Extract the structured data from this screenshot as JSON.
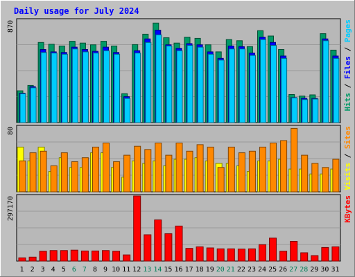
{
  "chart_data": {
    "type": "bar",
    "title": "Daily usage for July 2024",
    "categories": [
      "1",
      "2",
      "3",
      "4",
      "5",
      "6",
      "7",
      "8",
      "9",
      "10",
      "11",
      "12",
      "13",
      "14",
      "15",
      "16",
      "17",
      "18",
      "19",
      "20",
      "21",
      "22",
      "23",
      "24",
      "25",
      "26",
      "27",
      "28",
      "29",
      "30",
      "31"
    ],
    "weekend_days": [
      "6",
      "7",
      "13",
      "14",
      "20",
      "21",
      "27",
      "28"
    ],
    "panels": [
      {
        "id": "hits-panel",
        "scale_label": "870",
        "ylim": [
          0,
          870
        ],
        "legend": [
          "Hits",
          "Files",
          "Pages"
        ],
        "legend_colors": [
          "#009966",
          "#0000ff",
          "#00ccff"
        ],
        "series": [
          {
            "name": "Hits",
            "color": "#009966",
            "values": [
              270,
              315,
              680,
              665,
              650,
              690,
              675,
              660,
              690,
              650,
              245,
              662,
              750,
              845,
              720,
              675,
              725,
              715,
              660,
              600,
              705,
              695,
              645,
              780,
              735,
              620,
              238,
              225,
              235,
              755,
              615
            ]
          },
          {
            "name": "Files",
            "color": "#0000ff",
            "values": [
              250,
              305,
              620,
              600,
              595,
              640,
              620,
              605,
              640,
              595,
              220,
              610,
              710,
              785,
              660,
              630,
              670,
              660,
              600,
              545,
              650,
              645,
              590,
              725,
              680,
              565,
              212,
              206,
              205,
              710,
              565
            ]
          },
          {
            "name": "Pages",
            "color": "#00ccff",
            "values": [
              245,
              295,
              595,
              590,
              580,
              625,
              600,
              590,
              610,
              580,
              205,
              590,
              680,
              745,
              650,
              610,
              655,
              640,
              580,
              530,
              625,
              625,
              570,
              705,
              655,
              545,
              210,
              195,
              200,
              695,
              545
            ]
          }
        ]
      },
      {
        "id": "visits-panel",
        "scale_label": "80",
        "ylim": [
          0,
          80
        ],
        "legend": [
          "Visits",
          "Sites"
        ],
        "legend_colors": [
          "#ffff00",
          "#ff8800"
        ],
        "series": [
          {
            "name": "Visits",
            "color": "#ffff00",
            "values": [
              55,
              38,
              55,
              25,
              42,
              30,
              30,
              48,
              48,
              30,
              18,
              38,
              35,
              38,
              32,
              40,
              40,
              42,
              38,
              35,
              35,
              32,
              25,
              38,
              38,
              40,
              28,
              28,
              22,
              22,
              28
            ]
          },
          {
            "name": "Sites",
            "color": "#ff8800",
            "values": [
              38,
              48,
              50,
              32,
              48,
              37,
              42,
              55,
              60,
              37,
              45,
              56,
              52,
              60,
              45,
              60,
              50,
              58,
              55,
              30,
              55,
              48,
              50,
              55,
              60,
              63,
              78,
              45,
              35,
              30,
              40
            ]
          }
        ]
      },
      {
        "id": "kbytes-panel",
        "scale_label": "297170",
        "ylim": [
          0,
          297170
        ],
        "legend": [
          "KBytes"
        ],
        "legend_colors": [
          "#ff0000"
        ],
        "series": [
          {
            "name": "KBytes",
            "color": "#ff0000",
            "values": [
              15000,
              18000,
              45000,
              48000,
              48000,
              50000,
              46000,
              46000,
              48000,
              45000,
              28000,
              297170,
              120000,
              188000,
              125000,
              160000,
              58000,
              65000,
              60000,
              56000,
              56000,
              55000,
              56000,
              75000,
              105000,
              45000,
              90000,
              38000,
              25000,
              62000,
              65000
            ]
          }
        ]
      }
    ]
  }
}
